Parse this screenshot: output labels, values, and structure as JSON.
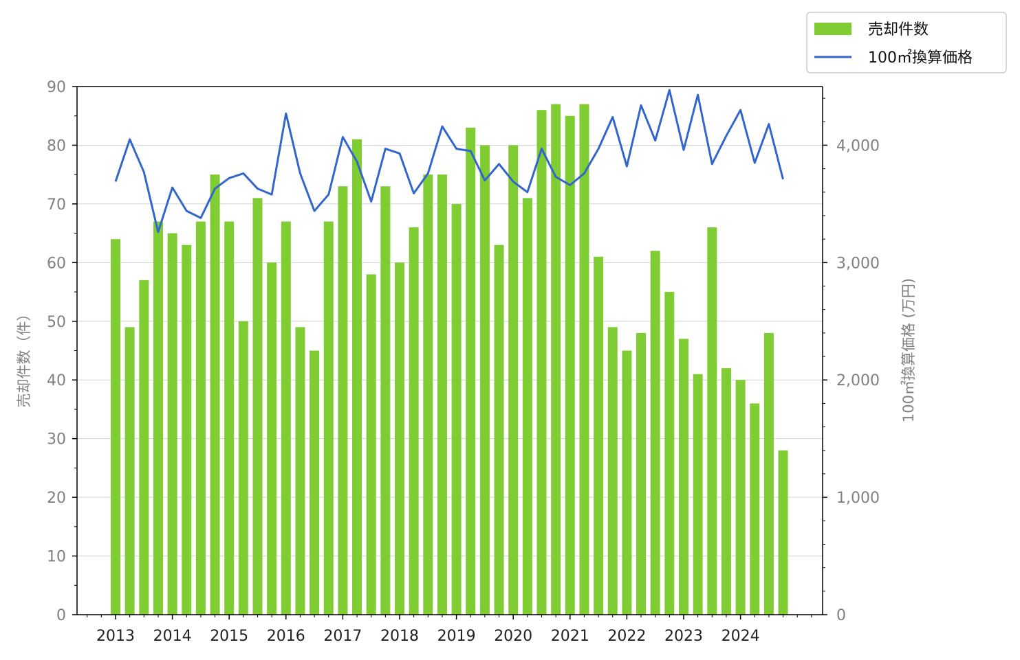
{
  "colors": {
    "bar": "#80cc33",
    "line": "#3366cc",
    "grid": "#d3d3d3",
    "axis": "#000000",
    "tick_text": "#808080"
  },
  "chart_data": {
    "type": "bar",
    "legend_position": "top-right",
    "grid": "horizontal",
    "x": {
      "labels": [
        "2013",
        "2014",
        "2015",
        "2016",
        "2017",
        "2018",
        "2019",
        "2020",
        "2021",
        "2022",
        "2023",
        "2024"
      ]
    },
    "y_left": {
      "label": "売却件数（件）",
      "range": [
        0,
        90
      ],
      "ticks": [
        "0",
        "10",
        "20",
        "30",
        "40",
        "50",
        "60",
        "70",
        "80",
        "90"
      ]
    },
    "y_right": {
      "label": "100㎡換算価格 (万円)",
      "range": [
        0,
        4500
      ],
      "ticks": [
        "0",
        "1,000",
        "2,000",
        "3,000",
        "4,000"
      ]
    },
    "series": [
      {
        "name": "売却件数",
        "type": "bar",
        "axis": "left",
        "values": [
          64,
          49,
          57,
          67,
          65,
          63,
          67,
          75,
          67,
          50,
          71,
          60,
          67,
          49,
          45,
          67,
          73,
          81,
          58,
          73,
          60,
          66,
          75,
          75,
          70,
          83,
          80,
          63,
          80,
          71,
          86,
          87,
          85,
          87,
          61,
          49,
          45,
          48,
          62,
          55,
          47,
          41,
          66,
          42,
          40,
          36,
          48,
          28
        ]
      },
      {
        "name": "100㎡換算価格",
        "type": "line",
        "axis": "right",
        "values": [
          3690,
          4050,
          3770,
          3260,
          3640,
          3440,
          3380,
          3630,
          3720,
          3760,
          3630,
          3580,
          4270,
          3760,
          3440,
          3580,
          4070,
          3860,
          3520,
          3970,
          3930,
          3590,
          3760,
          4160,
          3970,
          3950,
          3700,
          3840,
          3690,
          3600,
          3970,
          3730,
          3660,
          3760,
          3970,
          4240,
          3820,
          4340,
          4040,
          4470,
          3960,
          4430,
          3840,
          4080,
          4300,
          3850,
          4180,
          3710
        ]
      }
    ]
  }
}
